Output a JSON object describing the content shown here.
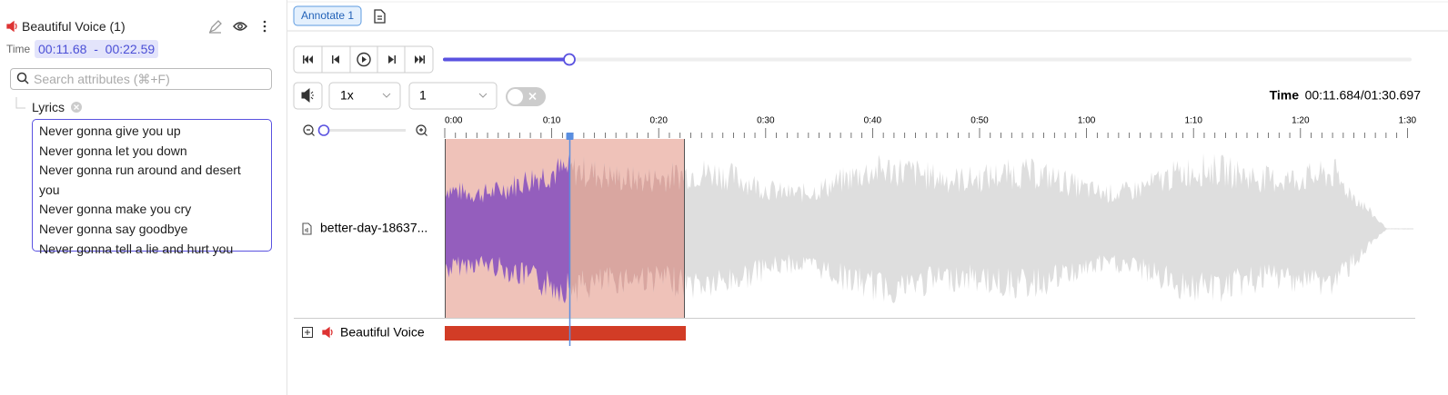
{
  "sidebar": {
    "title": "Beautiful Voice (1)",
    "time_label": "Time",
    "time_range": "00:11.68  -  00:22.59",
    "search_placeholder": "Search attributes (⌘+F)",
    "attribute": {
      "name": "Lyrics",
      "lines": [
        "Never gonna give you up",
        "Never gonna let you down",
        "Never gonna run around and desert you",
        "Never gonna make you cry",
        "Never gonna say goodbye",
        "Never gonna tell a lie and hurt you"
      ]
    }
  },
  "toolbar": {
    "annotate_button": "Annotate 1"
  },
  "player": {
    "speed": "1x",
    "channel": "1",
    "time_label": "Time",
    "time": "00:11.684/01:30.697"
  },
  "timeline": {
    "tick_labels": [
      "0:00",
      "0:10",
      "0:20",
      "0:30",
      "0:40",
      "0:50",
      "1:00",
      "1:10",
      "1:20",
      "1:30"
    ]
  },
  "tracks": [
    {
      "file": "better-day-18637...",
      "label": "Beautiful Voice"
    }
  ]
}
